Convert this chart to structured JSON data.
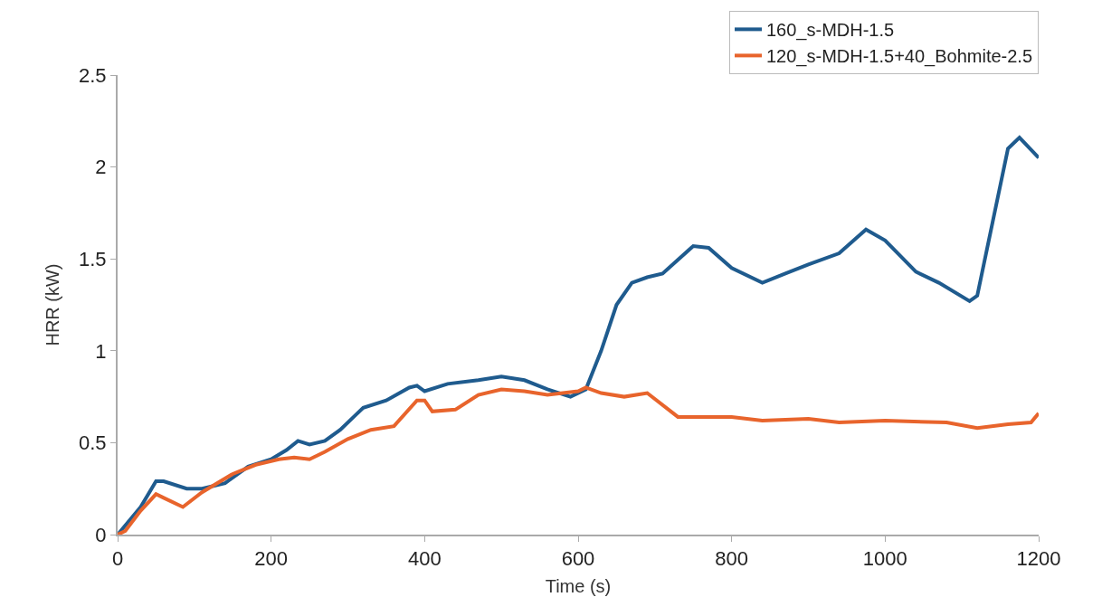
{
  "chart_data": {
    "type": "line",
    "xlabel": "Time (s)",
    "ylabel": "HRR (kW)",
    "xlim": [
      0,
      1200
    ],
    "xticks": [
      0,
      200,
      400,
      600,
      800,
      1000,
      1200
    ],
    "ylim": [
      0,
      2.5
    ],
    "yticks": [
      0,
      0.5,
      1,
      1.5,
      2,
      2.5
    ],
    "grid": false,
    "legend": "top right",
    "marker": "none",
    "line_style": "solid",
    "series": [
      {
        "name": "160_s-MDH-1.5",
        "color": "#1f5b8e",
        "x": [
          0,
          30,
          50,
          60,
          90,
          110,
          140,
          170,
          200,
          220,
          235,
          250,
          270,
          290,
          310,
          320,
          350,
          380,
          390,
          400,
          430,
          470,
          500,
          530,
          560,
          590,
          610,
          630,
          650,
          670,
          690,
          710,
          750,
          770,
          800,
          840,
          870,
          900,
          940,
          975,
          1000,
          1040,
          1070,
          1110,
          1120,
          1140,
          1160,
          1175,
          1200
        ],
        "values": [
          0,
          0.15,
          0.29,
          0.29,
          0.25,
          0.25,
          0.28,
          0.37,
          0.41,
          0.46,
          0.51,
          0.49,
          0.51,
          0.57,
          0.65,
          0.69,
          0.73,
          0.8,
          0.81,
          0.78,
          0.82,
          0.84,
          0.86,
          0.84,
          0.79,
          0.75,
          0.79,
          1.0,
          1.25,
          1.37,
          1.4,
          1.42,
          1.57,
          1.56,
          1.45,
          1.37,
          1.42,
          1.47,
          1.53,
          1.66,
          1.6,
          1.43,
          1.37,
          1.27,
          1.3,
          1.7,
          2.1,
          2.16,
          2.05
        ]
      },
      {
        "name": "120_s-MDH-1.5+40_Bohmite-2.5",
        "color": "#e8642c",
        "x": [
          0,
          10,
          30,
          50,
          60,
          85,
          110,
          150,
          180,
          210,
          230,
          250,
          270,
          300,
          330,
          360,
          390,
          400,
          410,
          440,
          470,
          500,
          530,
          560,
          600,
          610,
          630,
          660,
          690,
          730,
          800,
          840,
          900,
          940,
          1000,
          1080,
          1120,
          1160,
          1190,
          1200
        ],
        "values": [
          0,
          0.02,
          0.13,
          0.22,
          0.2,
          0.15,
          0.23,
          0.33,
          0.38,
          0.41,
          0.42,
          0.41,
          0.45,
          0.52,
          0.57,
          0.59,
          0.73,
          0.73,
          0.67,
          0.68,
          0.76,
          0.79,
          0.78,
          0.76,
          0.78,
          0.8,
          0.77,
          0.75,
          0.77,
          0.64,
          0.64,
          0.62,
          0.63,
          0.61,
          0.62,
          0.61,
          0.58,
          0.6,
          0.61,
          0.66
        ]
      }
    ]
  }
}
